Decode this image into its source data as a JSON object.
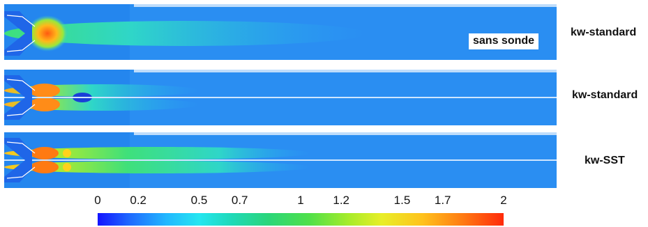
{
  "panels": [
    {
      "model_label": "kw-standard",
      "note": "sans sonde"
    },
    {
      "model_label": "kw-standard"
    },
    {
      "model_label": "kw-SST"
    }
  ],
  "colorbar": {
    "ticks": [
      {
        "label": "0",
        "value": 0
      },
      {
        "label": "0.2",
        "value": 0.2
      },
      {
        "label": "0.5",
        "value": 0.5
      },
      {
        "label": "0.7",
        "value": 0.7
      },
      {
        "label": "1",
        "value": 1
      },
      {
        "label": "1.2",
        "value": 1.2
      },
      {
        "label": "1.5",
        "value": 1.5
      },
      {
        "label": "1.7",
        "value": 1.7
      },
      {
        "label": "2",
        "value": 2
      }
    ],
    "range": [
      0,
      2
    ],
    "colors": [
      "#1414ff",
      "#22b8ff",
      "#2ad67a",
      "#e8ee28",
      "#ff2a0a"
    ]
  }
}
